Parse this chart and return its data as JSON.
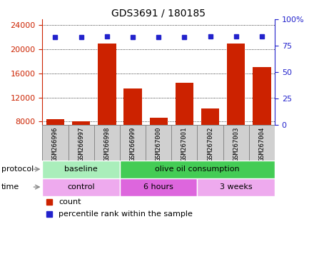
{
  "title": "GDS3691 / 180185",
  "samples": [
    "GSM266996",
    "GSM266997",
    "GSM266998",
    "GSM266999",
    "GSM267000",
    "GSM267001",
    "GSM267002",
    "GSM267003",
    "GSM267004"
  ],
  "counts": [
    8400,
    8100,
    21000,
    13500,
    8600,
    14500,
    10200,
    21000,
    17000
  ],
  "percentiles": [
    83,
    83,
    84,
    83,
    83,
    83,
    84,
    84,
    84
  ],
  "ylim_left": [
    7500,
    25000
  ],
  "ylim_right": [
    0,
    100
  ],
  "yticks_left": [
    8000,
    12000,
    16000,
    20000,
    24000
  ],
  "yticks_right": [
    0,
    25,
    50,
    75,
    100
  ],
  "bar_color": "#cc2200",
  "marker_color": "#2222cc",
  "protocol_groups": [
    {
      "label": "baseline",
      "start": 0,
      "end": 3,
      "color": "#aaeebb"
    },
    {
      "label": "olive oil consumption",
      "start": 3,
      "end": 9,
      "color": "#44cc55"
    }
  ],
  "time_groups": [
    {
      "label": "control",
      "start": 0,
      "end": 3,
      "color": "#eeaaee"
    },
    {
      "label": "6 hours",
      "start": 3,
      "end": 6,
      "color": "#dd66dd"
    },
    {
      "label": "3 weeks",
      "start": 6,
      "end": 9,
      "color": "#eeaaee"
    }
  ],
  "legend_count_label": "count",
  "legend_pct_label": "percentile rank within the sample",
  "title_fontsize": 10,
  "axis_color_left": "#cc2200",
  "axis_color_right": "#2222cc",
  "tick_fontsize": 8,
  "bar_width": 0.7,
  "sample_box_color": "#d0d0d0",
  "sample_box_edge": "#888888"
}
